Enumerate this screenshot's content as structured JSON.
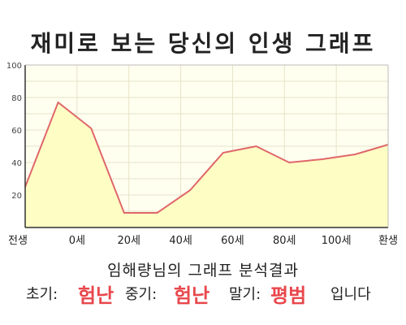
{
  "chart_data": {
    "type": "area",
    "title": "재미로 보는 당신의 인생 그래프",
    "x_labels": [
      "전생",
      "0세",
      "20세",
      "40세",
      "60세",
      "80세",
      "100세",
      "환생"
    ],
    "y_ticks": [
      100,
      80,
      60,
      40,
      20
    ],
    "ylim": [
      0,
      100
    ],
    "grid": true,
    "series": [
      {
        "values": [
          25,
          77,
          61,
          9,
          9,
          23,
          46,
          50,
          40,
          42,
          45,
          51
        ]
      }
    ],
    "colors": {
      "line": "#e0676a",
      "fill": "#fdfdc4",
      "plot_bg": "#fffff0",
      "grid": "#e6e3c8"
    }
  },
  "subtitle": "임해량님의 그래프 분석결과",
  "result": {
    "early_label": "초기:",
    "early_value": "험난",
    "mid_label": "중기:",
    "mid_value": "험난",
    "late_label": "말기:",
    "late_value": "평범",
    "ending": "입니다"
  }
}
